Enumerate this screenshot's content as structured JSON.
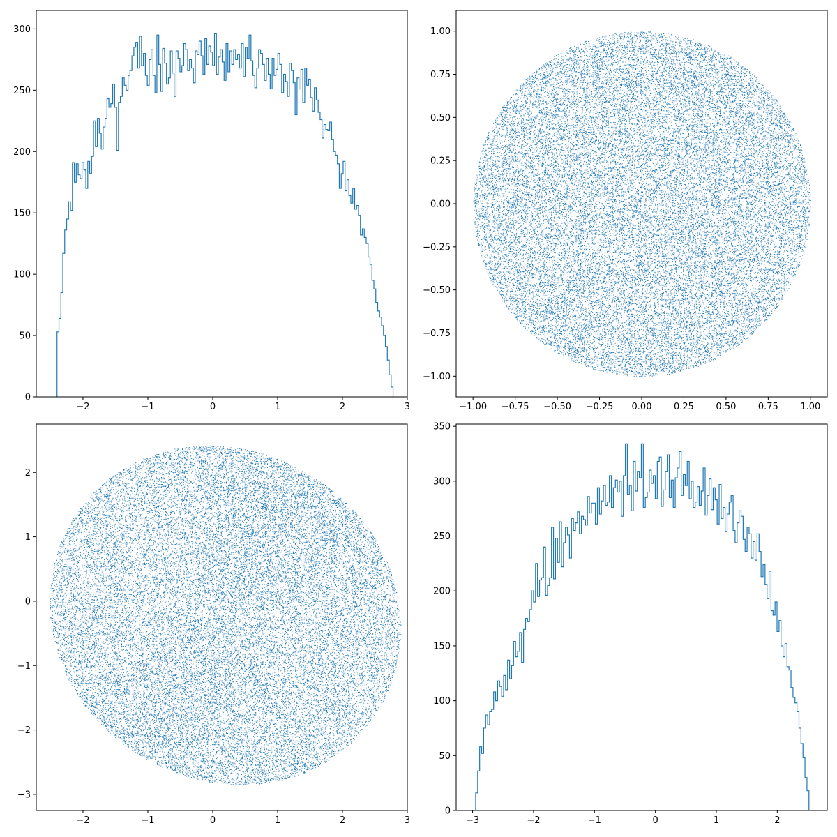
{
  "chart_data": [
    {
      "type": "histogram",
      "panel": "top-left",
      "histtype": "step",
      "color": "#1f77b4",
      "xlim": [
        -2.72,
        3.0
      ],
      "ylim": [
        0,
        315
      ],
      "xticks": [
        -2,
        -1,
        0,
        1,
        2,
        3
      ],
      "xtick_labels": [
        "−2",
        "−1",
        "0",
        "1",
        "2",
        "3"
      ],
      "yticks": [
        0,
        50,
        100,
        150,
        200,
        250,
        300
      ],
      "ytick_labels": [
        "0",
        "50",
        "100",
        "150",
        "200",
        "250",
        "300"
      ],
      "bin_range": [
        -2.4,
        2.78
      ],
      "values": [
        53,
        64,
        85,
        117,
        136,
        145,
        159,
        152,
        191,
        175,
        190,
        181,
        178,
        191,
        185,
        170,
        192,
        182,
        196,
        225,
        204,
        227,
        215,
        202,
        220,
        227,
        243,
        236,
        239,
        255,
        236,
        201,
        240,
        245,
        260,
        254,
        250,
        262,
        266,
        278,
        285,
        289,
        268,
        294,
        270,
        280,
        262,
        254,
        275,
        283,
        262,
        248,
        295,
        271,
        249,
        284,
        272,
        255,
        260,
        282,
        264,
        245,
        282,
        276,
        265,
        270,
        288,
        283,
        266,
        275,
        268,
        256,
        282,
        279,
        290,
        278,
        263,
        292,
        271,
        286,
        281,
        270,
        296,
        263,
        277,
        283,
        273,
        258,
        288,
        265,
        282,
        271,
        283,
        275,
        279,
        268,
        288,
        261,
        285,
        276,
        295,
        274,
        262,
        252,
        268,
        283,
        280,
        271,
        258,
        276,
        263,
        251,
        276,
        262,
        267,
        280,
        271,
        248,
        263,
        257,
        245,
        272,
        266,
        256,
        230,
        260,
        251,
        267,
        240,
        268,
        254,
        259,
        244,
        233,
        252,
        242,
        232,
        226,
        211,
        222,
        218,
        217,
        224,
        210,
        200,
        197,
        190,
        170,
        182,
        192,
        168,
        177,
        164,
        158,
        170,
        153,
        156,
        148,
        132,
        137,
        130,
        125,
        114,
        108,
        95,
        88,
        77,
        70,
        65,
        58,
        50,
        41,
        30,
        18,
        8
      ]
    },
    {
      "type": "scatter",
      "panel": "top-right",
      "shape": "disk",
      "color": "#1f77b4",
      "center": [
        0,
        0
      ],
      "radius": 1.0,
      "xlim": [
        -1.1,
        1.1
      ],
      "ylim": [
        -1.12,
        1.12
      ],
      "xticks": [
        -1.0,
        -0.75,
        -0.5,
        -0.25,
        0.0,
        0.25,
        0.5,
        0.75,
        1.0
      ],
      "xtick_labels": [
        "−1.00",
        "−0.75",
        "−0.50",
        "−0.25",
        "0.00",
        "0.25",
        "0.50",
        "0.75",
        "1.00"
      ],
      "yticks": [
        -1.0,
        -0.75,
        -0.5,
        -0.25,
        0.0,
        0.25,
        0.5,
        0.75,
        1.0
      ],
      "ytick_labels": [
        "−1.00",
        "−0.75",
        "−0.50",
        "−0.25",
        "0.00",
        "0.25",
        "0.50",
        "0.75",
        "1.00"
      ],
      "point_count": 36000
    },
    {
      "type": "scatter",
      "panel": "bottom-left",
      "shape": "blob",
      "color": "#1f77b4",
      "x_extent": [
        -2.4,
        2.78
      ],
      "y_extent": [
        -2.95,
        2.52
      ],
      "xlim": [
        -2.72,
        3.0
      ],
      "ylim": [
        -3.25,
        2.75
      ],
      "xticks": [
        -2,
        -1,
        0,
        1,
        2,
        3
      ],
      "xtick_labels": [
        "−2",
        "−1",
        "0",
        "1",
        "2",
        "3"
      ],
      "yticks": [
        -3,
        -2,
        -1,
        0,
        1,
        2
      ],
      "ytick_labels": [
        "−3",
        "−2",
        "−1",
        "0",
        "1",
        "2"
      ],
      "point_count": 36000
    },
    {
      "type": "histogram",
      "panel": "bottom-right",
      "histtype": "step",
      "color": "#1f77b4",
      "xlim": [
        -3.27,
        2.82
      ],
      "ylim": [
        0,
        352
      ],
      "xticks": [
        -3,
        -2,
        -1,
        0,
        1,
        2
      ],
      "xtick_labels": [
        "−3",
        "−2",
        "−1",
        "0",
        "1",
        "2"
      ],
      "yticks": [
        0,
        50,
        100,
        150,
        200,
        250,
        300,
        350
      ],
      "ytick_labels": [
        "0",
        "50",
        "100",
        "150",
        "200",
        "250",
        "300",
        "350"
      ],
      "bin_range": [
        -2.95,
        2.52
      ],
      "values": [
        16,
        36,
        58,
        52,
        75,
        87,
        78,
        90,
        92,
        108,
        100,
        118,
        113,
        104,
        123,
        110,
        137,
        120,
        132,
        154,
        140,
        145,
        162,
        135,
        165,
        175,
        172,
        183,
        200,
        190,
        225,
        195,
        210,
        212,
        240,
        196,
        205,
        212,
        258,
        211,
        248,
        226,
        263,
        222,
        244,
        258,
        251,
        230,
        266,
        255,
        262,
        272,
        252,
        268,
        265,
        260,
        286,
        271,
        280,
        280,
        261,
        294,
        270,
        282,
        296,
        278,
        281,
        305,
        276,
        294,
        301,
        290,
        300,
        268,
        305,
        334,
        288,
        296,
        273,
        318,
        291,
        309,
        303,
        334,
        276,
        285,
        290,
        310,
        298,
        305,
        284,
        318,
        322,
        277,
        292,
        309,
        324,
        285,
        301,
        276,
        303,
        312,
        327,
        287,
        306,
        296,
        318,
        284,
        300,
        276,
        281,
        295,
        278,
        291,
        312,
        269,
        287,
        302,
        274,
        294,
        283,
        261,
        297,
        266,
        276,
        254,
        270,
        281,
        287,
        255,
        244,
        262,
        273,
        268,
        247,
        236,
        258,
        252,
        230,
        245,
        228,
        252,
        236,
        213,
        224,
        206,
        193,
        218,
        182,
        178,
        190,
        163,
        173,
        150,
        140,
        152,
        131,
        128,
        112,
        103,
        98,
        90,
        75,
        61,
        48,
        30,
        18
      ]
    }
  ]
}
